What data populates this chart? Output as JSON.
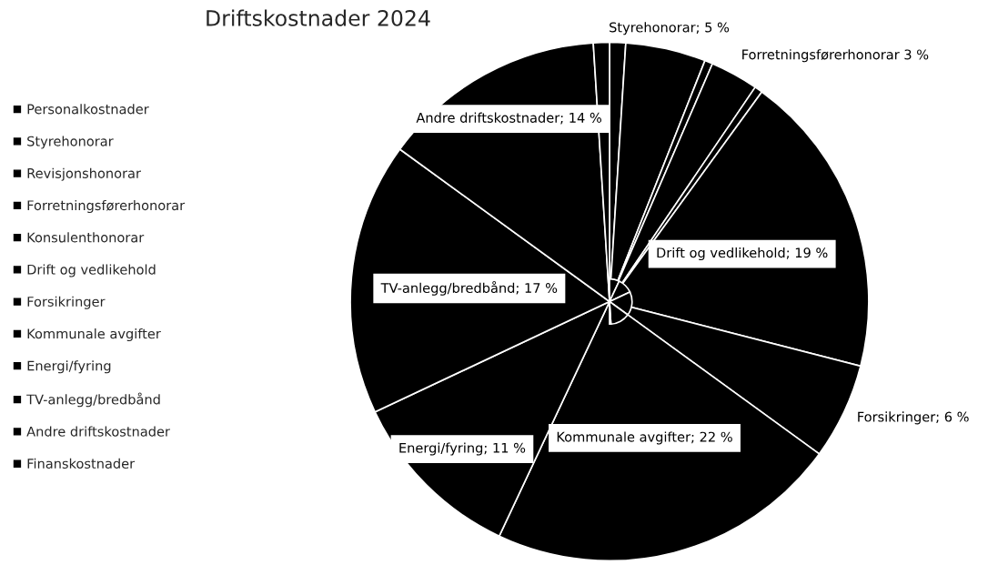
{
  "chart_data": {
    "type": "pie",
    "title": "Driftskostnader 2024",
    "categories": [
      "Personalkostnader",
      "Styrehonorar",
      "Revisjonshonorar",
      "Forretningsførerhonorar",
      "Konsulenthonorar",
      "Drift og vedlikehold",
      "Forsikringer",
      "Kommunale avgifter",
      "Energi/fyring",
      "TV-anlegg/bredbånd",
      "Andre driftskostnader",
      "Finanskostnader"
    ],
    "values": [
      1,
      5,
      0.5,
      3,
      0.5,
      19,
      6,
      22,
      11,
      17,
      14,
      1
    ],
    "colors": [
      "#000000",
      "#000000",
      "#000000",
      "#000000",
      "#000000",
      "#000000",
      "#000000",
      "#000000",
      "#000000",
      "#000000",
      "#000000",
      "#000000"
    ],
    "value_labels": [
      null,
      "Styrehonorar; 5 %",
      null,
      "Forretningsførerhonorar 3 %",
      null,
      "Drift og vedlikehold; 19 %",
      "Forsikringer; 6 %",
      "Kommunale avgifter; 22 %",
      "Energi/fyring; 11 %",
      "TV-anlegg/bredbånd; 17 %",
      "Andre driftskostnader; 14 %",
      null
    ],
    "legend": "left"
  }
}
